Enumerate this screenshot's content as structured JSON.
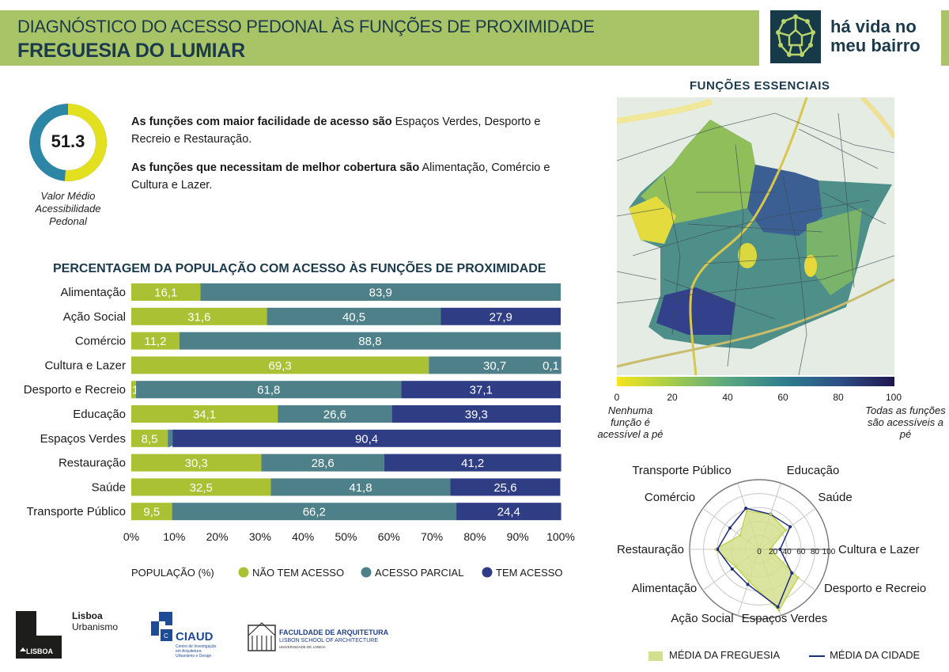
{
  "header": {
    "title": "DIAGNÓSTICO DO ACESSO PEDONAL ÀS FUNÇÕES DE PROXIMIDADE",
    "subtitle": "FREGUESIA DO LUMIAR",
    "brand_line1": "há vida no",
    "brand_line2": "meu bairro"
  },
  "gauge": {
    "value": "51.3",
    "fraction": 0.513,
    "caption_line1": "Valor Médio",
    "caption_line2": "Acessibilidade",
    "caption_line3": "Pedonal",
    "colors": {
      "filled": "#e3e01f",
      "rest": "#2e86a6"
    }
  },
  "summary": {
    "p1_bold": "As funções com maior facilidade de acesso são",
    "p1_rest": " Espaços Verdes, Desporto e Recreio e Restauração.",
    "p2_bold": "As funções que necessitam de melhor cobertura são",
    "p2_rest": " Alimentação, Comércio e Cultura e Lazer."
  },
  "map": {
    "title": "FUNÇÕES  ESSENCIAIS",
    "colorbar_ticks": [
      "0",
      "20",
      "40",
      "60",
      "80",
      "100"
    ],
    "caption_left": "Nenhuma função é acessível a pé",
    "caption_right": "Todas as funções são acessíveis a pé"
  },
  "chart_data": [
    {
      "type": "bar",
      "orientation": "horizontal-stacked-100",
      "title": "PERCENTAGEM DA POPULAÇÃO COM ACESSO ÀS FUNÇÕES DE PROXIMIDADE",
      "categories": [
        "Alimentação",
        "Ação Social",
        "Comércio",
        "Cultura e Lazer",
        "Desporto e Recreio",
        "Educação",
        "Espaços Verdes",
        "Restauração",
        "Saúde",
        "Transporte Público"
      ],
      "series": [
        {
          "name": "NÃO TEM ACESSO",
          "color": "#a9c132",
          "values": [
            16.1,
            31.6,
            11.2,
            69.3,
            1.1,
            34.1,
            8.5,
            30.3,
            32.5,
            9.5
          ],
          "labels": [
            "16,1",
            "31,6",
            "11,2",
            "69,3",
            "1,1",
            "34,1",
            "8,5",
            "30,3",
            "32,5",
            "9,5"
          ]
        },
        {
          "name": "ACESSO PARCIAL",
          "color": "#4e8089",
          "values": [
            83.9,
            40.5,
            88.8,
            30.7,
            61.8,
            26.6,
            1.1,
            28.6,
            41.8,
            66.2
          ],
          "labels": [
            "83,9",
            "40,5",
            "88,8",
            "30,7",
            "61,8",
            "26,6",
            "1,1",
            "28,6",
            "41,8",
            "66,2"
          ]
        },
        {
          "name": "TEM ACESSO",
          "color": "#2f3d84",
          "values": [
            0,
            27.9,
            0,
            0.1,
            37.1,
            39.3,
            90.4,
            41.2,
            25.6,
            24.4
          ],
          "labels": [
            "",
            "27,9",
            "",
            "0,1",
            "37,1",
            "39,3",
            "90,4",
            "41,2",
            "25,6",
            "24,4"
          ]
        }
      ],
      "xticks": [
        "0%",
        "10%",
        "20%",
        "30%",
        "40%",
        "50%",
        "60%",
        "70%",
        "80%",
        "90%",
        "100%"
      ],
      "xlim": [
        0,
        100
      ],
      "legend_title": "POPULAÇÃO (%)",
      "legend_position": "bottom"
    },
    {
      "type": "radar",
      "axes": [
        "Cultura e Lazer",
        "Desporto e Recreio",
        "Espaços Verdes",
        "Ação Social",
        "Alimentação",
        "Restauração",
        "Comércio",
        "Transporte Público",
        "Educação",
        "Saúde"
      ],
      "series": [
        {
          "name": "MÉDIA DA FREGUESIA",
          "color": "#d4df8e",
          "values": [
            15,
            69,
            92,
            48,
            42,
            63,
            34,
            58,
            53,
            47
          ]
        },
        {
          "name": "MÉDIA DA CIDADE",
          "color": "#1e2d7a",
          "values": [
            30,
            58,
            87,
            53,
            48,
            60,
            52,
            62,
            53,
            55
          ]
        }
      ],
      "rticks": [
        "0",
        "20",
        "40",
        "60",
        "80",
        "100"
      ],
      "rlim": [
        0,
        100
      ],
      "legend_position": "bottom"
    }
  ],
  "footer": {
    "lisboa_mark": "LISBOA",
    "lisboa_line1": "Lisboa",
    "lisboa_line2": "Urbanismo",
    "ciaud_name": "CIAUD",
    "ciaud_sub1": "Centro de Investigação",
    "ciaud_sub2": "em Arquitetura",
    "ciaud_sub3": "Urbanismo e Design",
    "fa_line1": "FACULDADE DE ARQUITETURA",
    "fa_line2": "LISBON SCHOOL OF ARCHITECTURE",
    "fa_line3": "UNIVERSIDADE DE LISBOA"
  }
}
